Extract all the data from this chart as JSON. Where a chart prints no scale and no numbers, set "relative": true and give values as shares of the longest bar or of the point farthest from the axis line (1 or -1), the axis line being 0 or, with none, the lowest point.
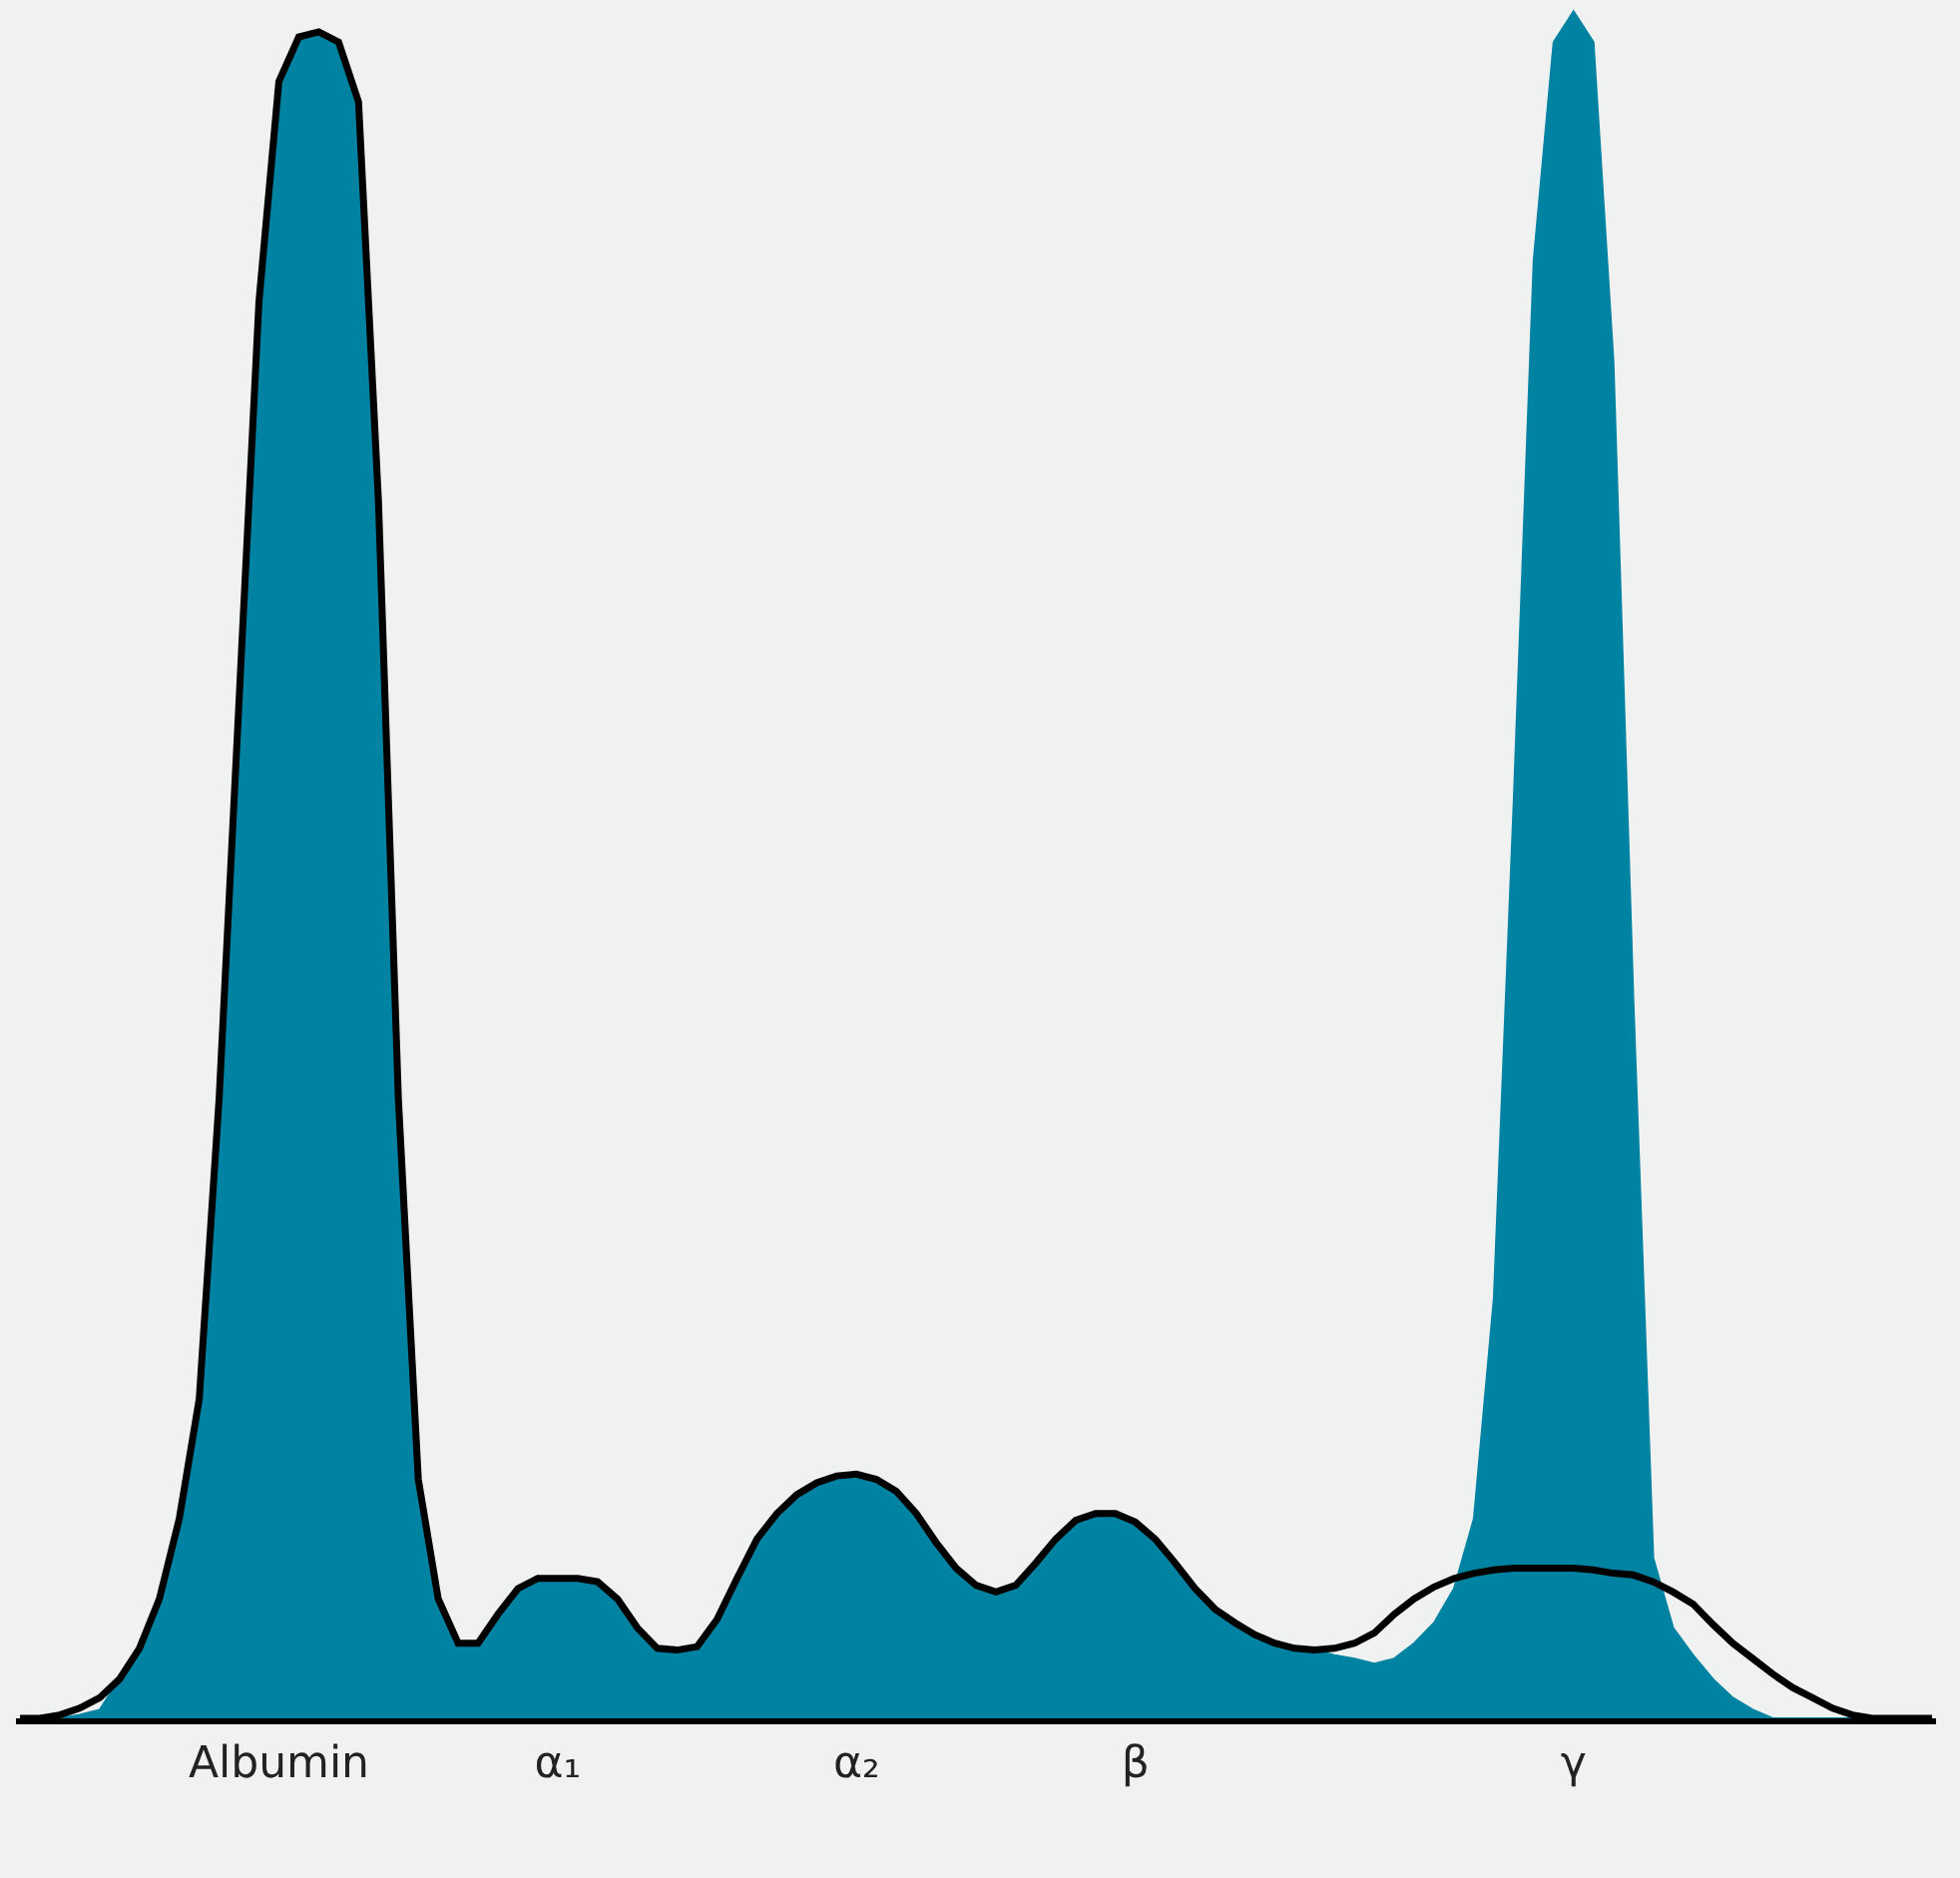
{
  "chart_data": {
    "type": "area",
    "relative": true,
    "categories": [
      null,
      null,
      null,
      null,
      null,
      null,
      null,
      null,
      null,
      null,
      null,
      null,
      null,
      "Albumin",
      null,
      null,
      null,
      null,
      null,
      null,
      null,
      null,
      null,
      null,
      null,
      null,
      null,
      "α₁",
      null,
      null,
      null,
      null,
      null,
      null,
      null,
      null,
      null,
      null,
      null,
      null,
      null,
      null,
      "α₂",
      null,
      null,
      null,
      null,
      null,
      null,
      null,
      null,
      null,
      null,
      null,
      null,
      null,
      "β",
      null,
      null,
      null,
      null,
      null,
      null,
      null,
      null,
      null,
      null,
      null,
      null,
      null,
      null,
      null,
      null,
      null,
      null,
      null,
      null,
      null,
      "γ",
      null,
      null,
      null,
      null,
      null,
      null,
      null,
      null,
      null,
      null,
      null,
      null,
      null,
      null,
      null,
      null,
      null,
      null
    ],
    "series": [
      {
        "color": "#0083a3",
        "values": [
          0,
          0,
          0,
          0.002,
          0.005,
          0.023,
          0.041,
          0.07,
          0.117,
          0.187,
          0.363,
          0.596,
          0.83,
          0.959,
          0.985,
          0.988,
          0.982,
          0.947,
          0.713,
          0.363,
          0.14,
          0.07,
          0.044,
          0.044,
          0.061,
          0.076,
          0.082,
          0.082,
          0.082,
          0.08,
          0.07,
          0.053,
          0.041,
          0.04,
          0.042,
          0.058,
          0.082,
          0.105,
          0.12,
          0.131,
          0.138,
          0.142,
          0.143,
          0.14,
          0.133,
          0.12,
          0.103,
          0.088,
          0.078,
          0.074,
          0.078,
          0.091,
          0.105,
          0.116,
          0.12,
          0.12,
          0.115,
          0.105,
          0.091,
          0.076,
          0.064,
          0.056,
          0.049,
          0.044,
          0.041,
          0.04,
          0.037,
          0.035,
          0.032,
          0.035,
          0.044,
          0.056,
          0.076,
          0.117,
          0.246,
          0.538,
          0.854,
          0.982,
          1,
          0.982,
          0.795,
          0.421,
          0.094,
          0.053,
          0.037,
          0.023,
          0.012,
          0.005,
          0,
          0,
          0,
          0,
          0,
          0,
          0,
          0,
          0
        ]
      },
      {
        "type": "line",
        "color": "#000000",
        "values": [
          0,
          0,
          0.002,
          0.006,
          0.012,
          0.023,
          0.041,
          0.07,
          0.117,
          0.187,
          0.363,
          0.596,
          0.83,
          0.959,
          0.985,
          0.988,
          0.982,
          0.947,
          0.713,
          0.363,
          0.14,
          0.07,
          0.044,
          0.044,
          0.061,
          0.076,
          0.082,
          0.082,
          0.082,
          0.08,
          0.07,
          0.053,
          0.041,
          0.04,
          0.042,
          0.058,
          0.082,
          0.105,
          0.12,
          0.131,
          0.138,
          0.142,
          0.143,
          0.14,
          0.133,
          0.12,
          0.103,
          0.088,
          0.078,
          0.074,
          0.078,
          0.091,
          0.105,
          0.116,
          0.12,
          0.12,
          0.115,
          0.105,
          0.091,
          0.076,
          0.064,
          0.056,
          0.049,
          0.044,
          0.041,
          0.04,
          0.041,
          0.044,
          0.05,
          0.061,
          0.07,
          0.077,
          0.082,
          0.085,
          0.087,
          0.088,
          0.088,
          0.088,
          0.088,
          0.087,
          0.085,
          0.084,
          0.08,
          0.074,
          0.067,
          0.055,
          0.044,
          0.035,
          0.026,
          0.018,
          0.012,
          0.006,
          0.002,
          0,
          0,
          0,
          0
        ]
      }
    ]
  }
}
